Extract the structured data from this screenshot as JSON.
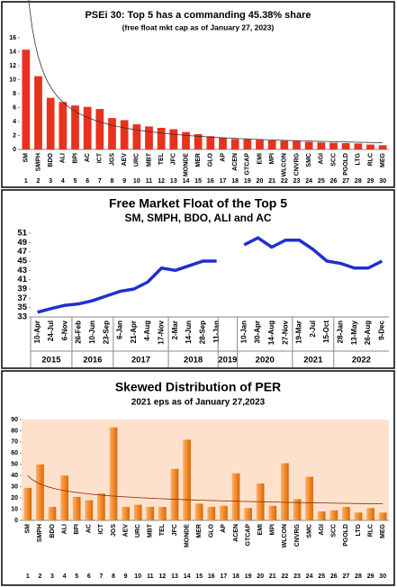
{
  "chart_data": [
    {
      "type": "bar",
      "title": "PSEi 30: Top 5 has a commanding 45.38% share",
      "subtitle": "(free float mkt cap as of January 27, 2023)",
      "categories": [
        "SM",
        "SMPH",
        "BDO",
        "ALI",
        "BPI",
        "AC",
        "ICT",
        "JGS",
        "AEV",
        "URC",
        "MBT",
        "TEL",
        "JFC",
        "MONDE",
        "MER",
        "GLO",
        "AP",
        "ACEN",
        "GTCAP",
        "EMI",
        "MPI",
        "WLCON",
        "CNVRG",
        "SMC",
        "AGI",
        "SCC",
        "PGOLD",
        "LTG",
        "RLC",
        "MEG"
      ],
      "ranks": [
        1,
        2,
        3,
        4,
        5,
        6,
        7,
        8,
        9,
        10,
        11,
        12,
        13,
        14,
        15,
        16,
        17,
        18,
        19,
        20,
        21,
        22,
        23,
        24,
        25,
        26,
        27,
        28,
        29,
        30
      ],
      "values": [
        14.3,
        10.5,
        7.4,
        6.8,
        6.3,
        6.1,
        5.8,
        4.5,
        4.2,
        3.6,
        3.3,
        3.1,
        2.9,
        2.5,
        2.2,
        1.9,
        1.7,
        1.5,
        1.45,
        1.4,
        1.3,
        1.25,
        1.2,
        1.1,
        1.0,
        0.95,
        0.9,
        0.85,
        0.7,
        0.6
      ],
      "color": "#e8321e",
      "ylim": [
        0,
        16
      ],
      "yticks": [
        0,
        2,
        4,
        6,
        8,
        10,
        12,
        14,
        16
      ],
      "trendline": true
    },
    {
      "type": "line",
      "title": "Free Market Float of the Top 5",
      "subtitle": "SM, SMPH, BDO, ALI and AC",
      "categories": [
        "10-Apr",
        "24-Jul",
        "6-Nov",
        "26-Feb",
        "10-Jun",
        "23-Sep",
        "6-Jan",
        "21-Apr",
        "4-Aug",
        "17-Nov",
        "2-Mar",
        "14-Jun",
        "28-Sep",
        "11-Jan",
        null,
        "10-Jan",
        "30-Apr",
        "14-Aug",
        "27-Nov",
        "19-Mar",
        "2-Jul",
        "15-Oct",
        "28-Jan",
        "13-May",
        "26-Aug",
        "9-Dec"
      ],
      "values": [
        34,
        34.8,
        35.5,
        35.8,
        36.5,
        37.5,
        38.5,
        39,
        40.5,
        43.5,
        43,
        44,
        45,
        45,
        null,
        48.5,
        50,
        48,
        49.5,
        49.5,
        47.5,
        45,
        44.5,
        43.5,
        43.5,
        45
      ],
      "years": [
        "2015",
        "2016",
        "2017",
        "2018",
        "2019",
        "2020",
        "2021",
        "2022"
      ],
      "color": "#1f2fd0",
      "ylim": [
        33,
        51
      ],
      "yticks": [
        33,
        35,
        37,
        39,
        41,
        43,
        45,
        47,
        49,
        51
      ]
    },
    {
      "type": "bar",
      "title": "Skewed Distribution of PER",
      "subtitle": "2021 eps as of January 27,2023",
      "categories": [
        "SM",
        "SMPH",
        "BDO",
        "ALI",
        "BPI",
        "AC",
        "ICT",
        "JGS",
        "AEV",
        "URC",
        "MBT",
        "TEL",
        "JFC",
        "MONDE",
        "MER",
        "GLO",
        "AP",
        "ACEN",
        "GTCAP",
        "EMI",
        "MPI",
        "WLCON",
        "CNVRG",
        "SMC",
        "AGI",
        "SCC",
        "PGOLD",
        "LTG",
        "RLC",
        "MEG"
      ],
      "ranks": [
        1,
        2,
        3,
        4,
        5,
        6,
        7,
        8,
        9,
        10,
        11,
        12,
        13,
        14,
        15,
        16,
        17,
        18,
        19,
        20,
        21,
        22,
        23,
        24,
        25,
        26,
        27,
        28,
        29,
        30
      ],
      "values": [
        29,
        50,
        12,
        40,
        21,
        18,
        24,
        83,
        12,
        14,
        12,
        12,
        46,
        72,
        15,
        12,
        13,
        42,
        11,
        33,
        13,
        51,
        19,
        39,
        8,
        9,
        12,
        7,
        11,
        7
      ],
      "color": "#f28c28",
      "ylim": [
        0,
        90
      ],
      "yticks": [
        0,
        10,
        20,
        30,
        40,
        50,
        60,
        70,
        80,
        90
      ],
      "trendline": true
    }
  ]
}
